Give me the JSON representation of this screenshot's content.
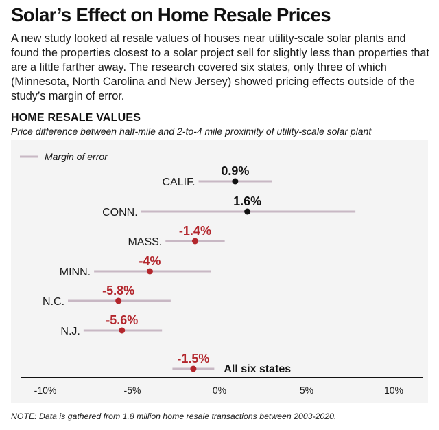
{
  "header": {
    "title": "Solar’s Effect on Home Resale Prices",
    "intro": "A new study looked at resale values of houses near utility-scale solar plants and found the properties closest to a solar project sell for slightly less than properties that are a little farther away. The research covered six states, only three of which (Minnesota, North Carolina and New Jersey) showed pricing effects outside of the study’s margin of error."
  },
  "colors": {
    "positive": "#111111",
    "negative": "#b3262c",
    "error_bar": "#c8b8c4",
    "axis": "#111111",
    "panel": "#f4f4f4"
  },
  "chart_data": {
    "type": "scatter",
    "title": "HOME RESALE VALUES",
    "subtitle": "Price difference between half-mile and 2-to-4 mile proximity of utility-scale solar plant",
    "legend": {
      "label": "Margin of error",
      "position": "top-left"
    },
    "xlim": [
      -11,
      11
    ],
    "x_ticks": [
      {
        "value": -10,
        "label": "-10%"
      },
      {
        "value": -5,
        "label": "-5%"
      },
      {
        "value": 0,
        "label": "0%"
      },
      {
        "value": 5,
        "label": "5%"
      },
      {
        "value": 10,
        "label": "10%"
      }
    ],
    "grid": false,
    "points": [
      {
        "state": "CALIF.",
        "value": 0.9,
        "label": "0.9%",
        "low": -1.2,
        "high": 3.0,
        "significant": false
      },
      {
        "state": "CONN.",
        "value": 1.6,
        "label": "1.6%",
        "low": -4.5,
        "high": 7.8,
        "significant": false
      },
      {
        "state": "MASS.",
        "value": -1.4,
        "label": "-1.4%",
        "low": -3.1,
        "high": 0.3,
        "significant": false
      },
      {
        "state": "MINN.",
        "value": -4.0,
        "label": "-4%",
        "low": -7.2,
        "high": -0.5,
        "significant": true
      },
      {
        "state": "N.C.",
        "value": -5.8,
        "label": "-5.8%",
        "low": -8.7,
        "high": -2.8,
        "significant": true
      },
      {
        "state": "N.J.",
        "value": -5.6,
        "label": "-5.6%",
        "low": -7.8,
        "high": -3.3,
        "significant": true
      },
      {
        "state": "All six states",
        "value": -1.5,
        "label": "-1.5%",
        "low": -2.7,
        "high": -0.3,
        "significant": false,
        "aggregate": true
      }
    ]
  },
  "footer": {
    "note": "NOTE: Data is gathered from 1.8 million home resale transactions between 2003-2020."
  }
}
